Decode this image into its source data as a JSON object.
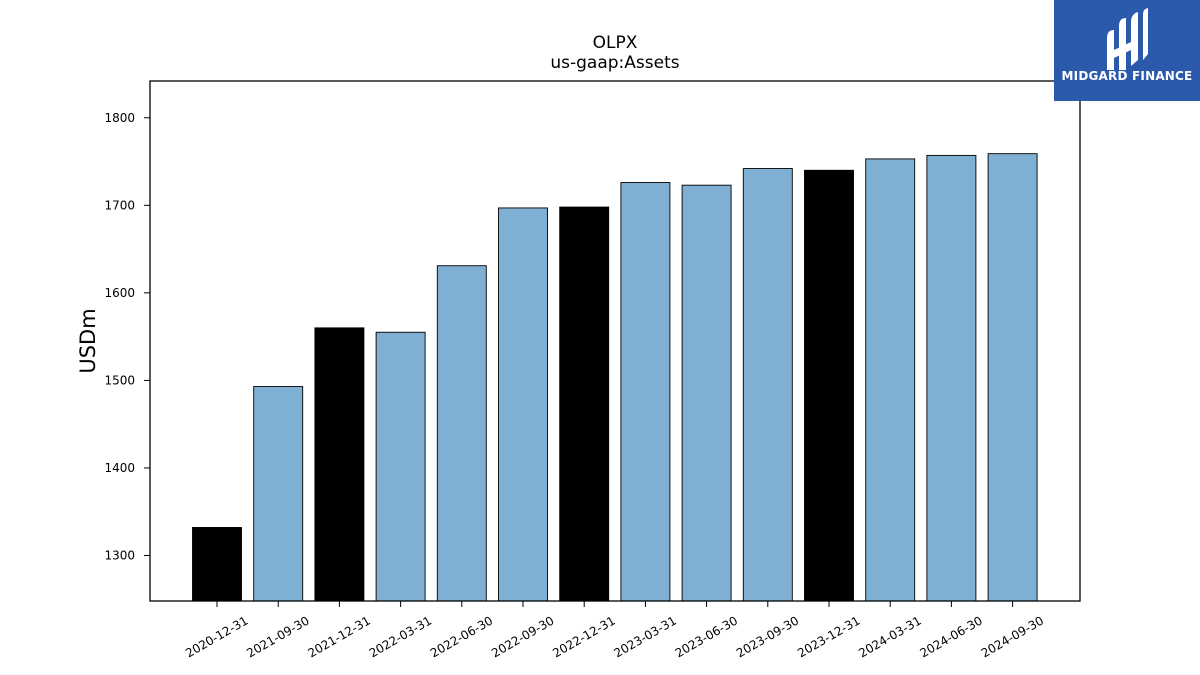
{
  "brand": {
    "name": "MIDGARD FINANCE",
    "logo_color": "#2b5aad",
    "icon": "midgard-logo-icon"
  },
  "chart_data": {
    "type": "bar",
    "title": "OLPX",
    "subtitle": "us-gaap:Assets",
    "xlabel": "",
    "ylabel": "USDm",
    "ylim": [
      1248,
      1842
    ],
    "yticks": [
      1300,
      1400,
      1500,
      1600,
      1700,
      1800
    ],
    "grid": false,
    "categories": [
      "2020-12-31",
      "2021-09-30",
      "2021-12-31",
      "2022-03-31",
      "2022-06-30",
      "2022-09-30",
      "2022-12-31",
      "2023-03-31",
      "2023-06-30",
      "2023-09-30",
      "2023-12-31",
      "2024-03-31",
      "2024-06-30",
      "2024-09-30"
    ],
    "values": [
      1332,
      1493,
      1560,
      1555,
      1631,
      1697,
      1698,
      1726,
      1723,
      1742,
      1740,
      1753,
      1757,
      1759
    ],
    "highlight": [
      "2020-12-31",
      "2021-12-31",
      "2022-12-31",
      "2023-12-31"
    ],
    "colors": {
      "bar": "#7fafd2",
      "highlight": "#000000",
      "edge": "#000000"
    }
  }
}
